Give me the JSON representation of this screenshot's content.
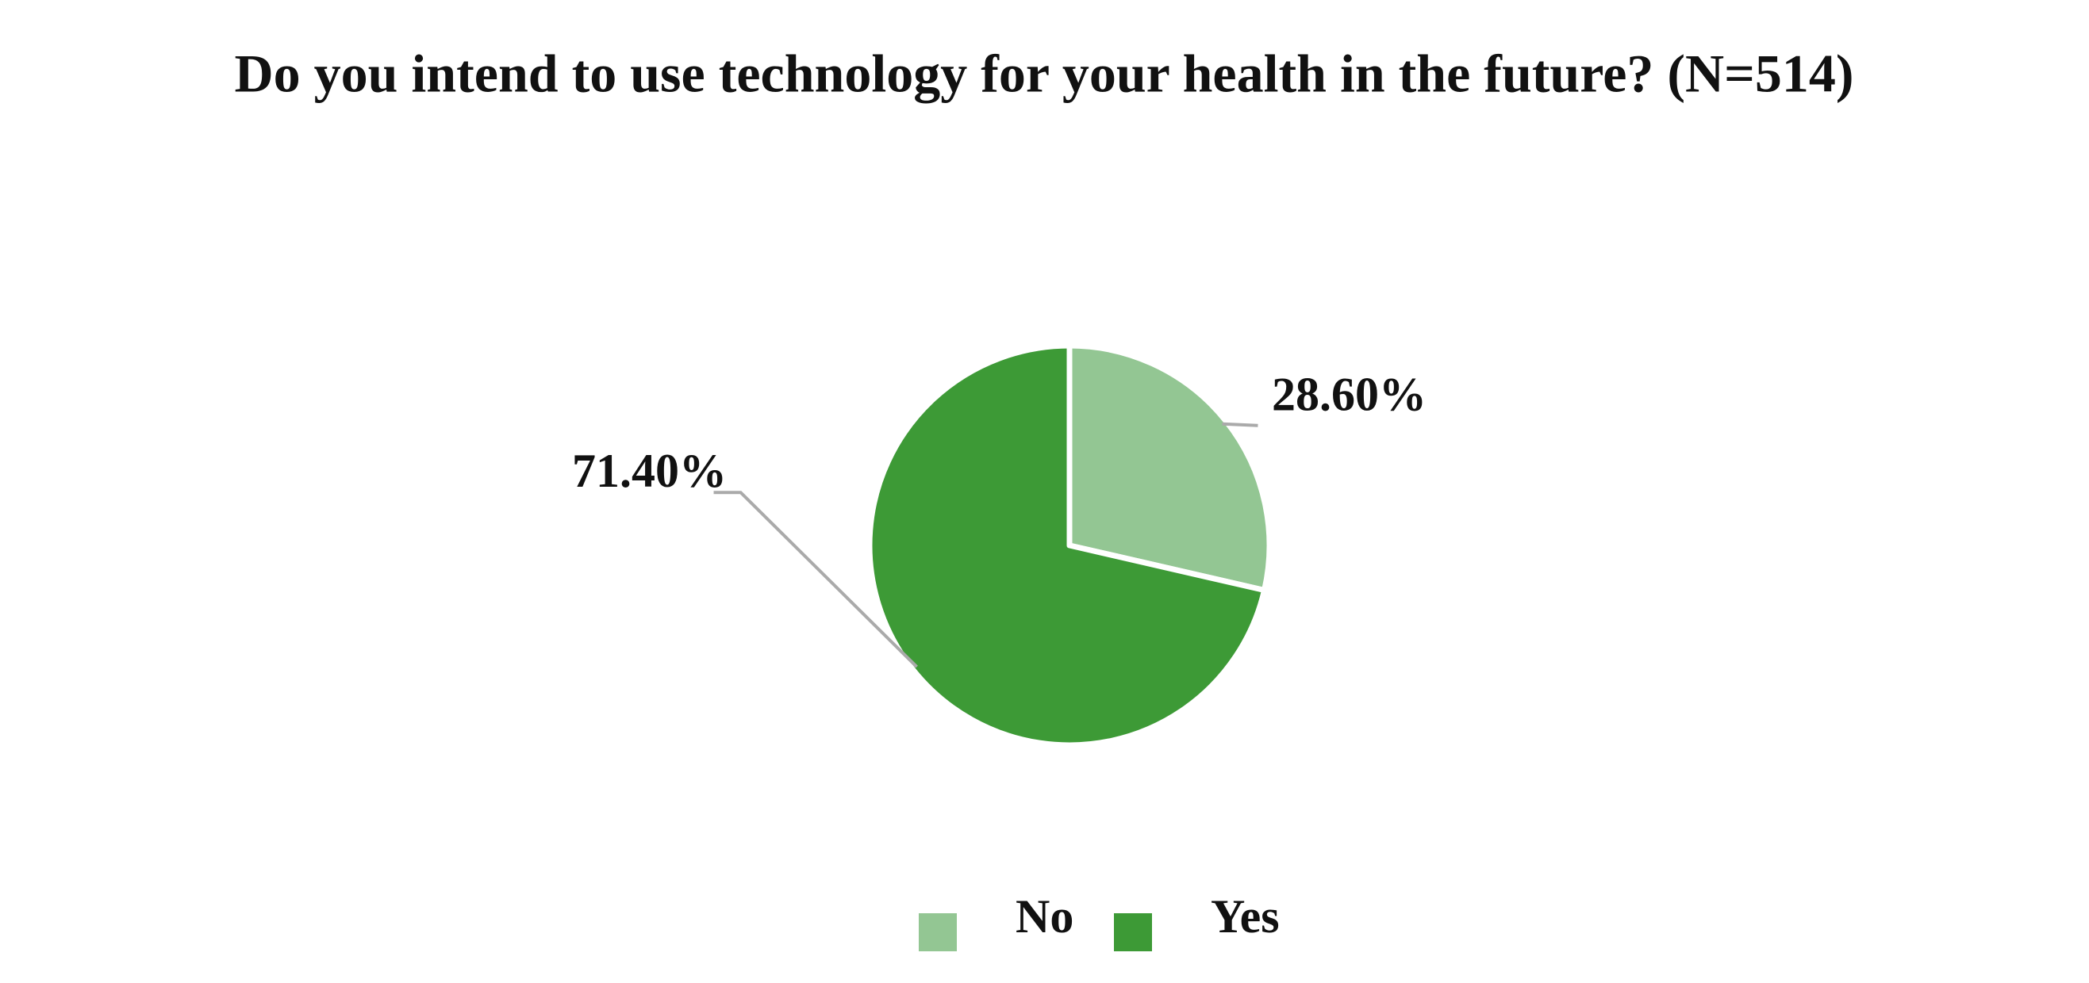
{
  "chart_data": {
    "type": "pie",
    "title": "Do you intend to use technology for your health in the future? (N=514)",
    "categories": [
      "No",
      "Yes"
    ],
    "values": [
      28.6,
      71.4
    ],
    "value_labels": [
      "28.60%",
      "71.40%"
    ],
    "colors": [
      "#93c693",
      "#3d9a36"
    ],
    "legend": "bottom"
  }
}
